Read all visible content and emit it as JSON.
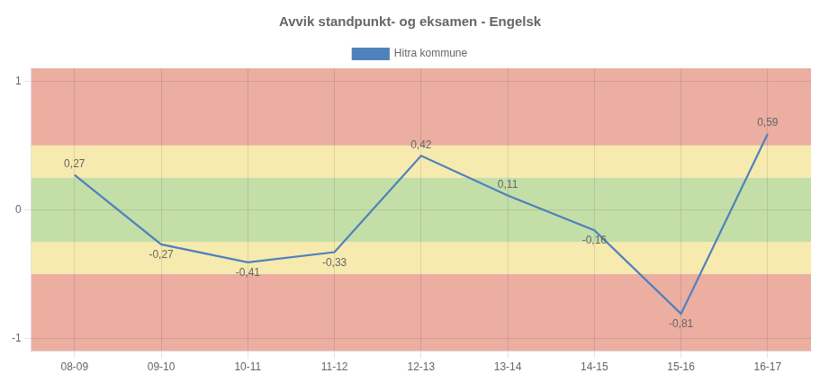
{
  "chart_data": {
    "type": "line",
    "title": "Avvik standpunkt- og eksamen - Engelsk",
    "categories": [
      "08-09",
      "09-10",
      "10-11",
      "11-12",
      "12-13",
      "13-14",
      "14-15",
      "15-16",
      "16-17"
    ],
    "series": [
      {
        "name": "Hitra kommune",
        "color": "#4F81BD",
        "values": [
          0.27,
          -0.27,
          -0.41,
          -0.33,
          0.42,
          0.11,
          -0.16,
          -0.81,
          0.59
        ],
        "value_labels": [
          "0,27",
          "-0,27",
          "-0,41",
          "-0,33",
          "0,42",
          "0,11",
          "-0,16",
          "-0,81",
          "0,59"
        ]
      }
    ],
    "ylim": [
      -1.1,
      1.1
    ],
    "yticks": [
      -1,
      0,
      1
    ],
    "grid": true,
    "legend": "top",
    "data_labels": true,
    "bands": [
      {
        "from": -1.1,
        "to": -0.5,
        "color": "#E8A090"
      },
      {
        "from": -0.5,
        "to": -0.25,
        "color": "#F5E6A0"
      },
      {
        "from": -0.25,
        "to": 0.25,
        "color": "#B8D898"
      },
      {
        "from": 0.25,
        "to": 0.5,
        "color": "#F5E6A0"
      },
      {
        "from": 0.5,
        "to": 1.1,
        "color": "#E8A090"
      }
    ]
  }
}
